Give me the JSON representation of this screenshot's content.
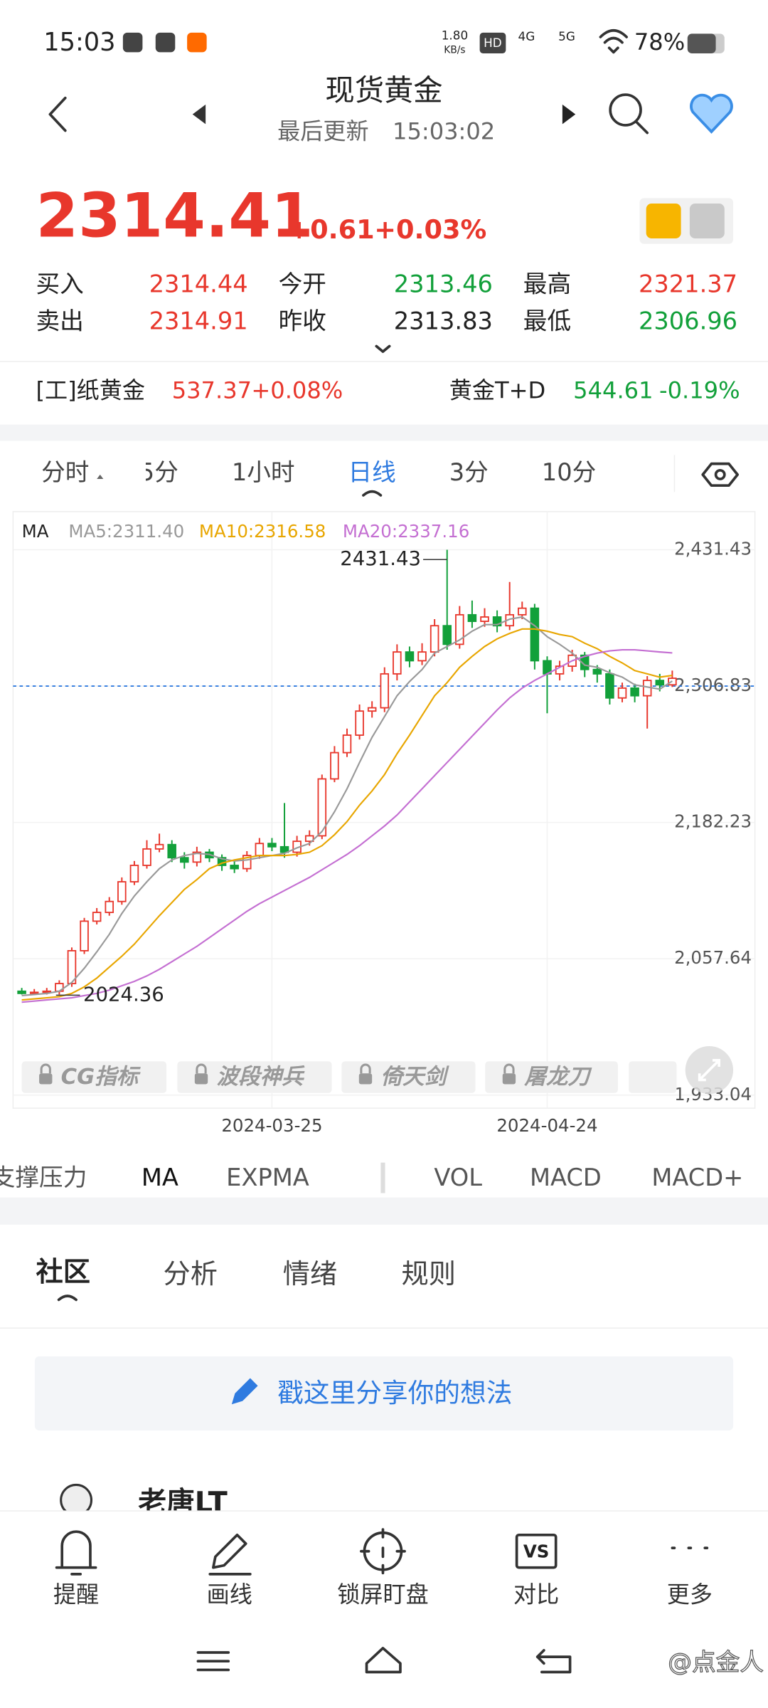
{
  "status_bar": {
    "time": "15:03",
    "speed": "1.80",
    "speed_unit": "KB/s",
    "hd": "HD",
    "network": [
      "4G",
      "5G"
    ],
    "battery": "78%"
  },
  "header": {
    "title": "现货黄金",
    "updated_label": "最后更新",
    "updated_time": "15:03:02"
  },
  "quote": {
    "price": "2314.41",
    "change": "+0.61",
    "change_pct": "+0.03%",
    "fields": [
      {
        "label": "买入",
        "value": "2314.44"
      },
      {
        "label": "今开",
        "value": "2313.46"
      },
      {
        "label": "最高",
        "value": "2321.37"
      },
      {
        "label": "卖出",
        "value": "2314.91"
      },
      {
        "label": "昨收",
        "value": "2313.83"
      },
      {
        "label": "最低",
        "value": "2306.96"
      }
    ]
  },
  "related": [
    {
      "name": "[工]纸黄金",
      "value": "537.37",
      "change": "+0.08%"
    },
    {
      "name": "黄金T+D",
      "value": "544.61",
      "change": "-0.19%"
    }
  ],
  "period_tabs": [
    "分时",
    "5分",
    "1小时",
    "日线",
    "3分",
    "10分"
  ],
  "chart_data": {
    "type": "candlestick",
    "legend_title": "MA",
    "categories": [
      null,
      null,
      null,
      null,
      null,
      null,
      null,
      null,
      null,
      null,
      null,
      null,
      null,
      null,
      null,
      null,
      null,
      null,
      null,
      null,
      "2024-03-25",
      null,
      null,
      null,
      null,
      null,
      null,
      null,
      null,
      null,
      null,
      null,
      null,
      null,
      null,
      null,
      null,
      null,
      null,
      null,
      null,
      null,
      "2024-04-24",
      null,
      null,
      null,
      null,
      null,
      null,
      null,
      null,
      null,
      null
    ],
    "open": [
      2028,
      2026,
      2027,
      2028,
      2035,
      2065,
      2092,
      2100,
      2110,
      2128,
      2143,
      2158,
      2162,
      2150,
      2146,
      2155,
      2150,
      2143,
      2140,
      2152,
      2163,
      2160,
      2155,
      2165,
      2170,
      2222,
      2246,
      2262,
      2284,
      2287,
      2318,
      2338,
      2330,
      2338,
      2362,
      2345,
      2372,
      2366,
      2370,
      2362,
      2372,
      2378,
      2330,
      2318,
      2325,
      2335,
      2322,
      2318,
      2296,
      2305,
      2298,
      2312,
      2308
    ],
    "high": [
      2031,
      2030,
      2031,
      2038,
      2068,
      2095,
      2104,
      2114,
      2132,
      2147,
      2166,
      2172,
      2166,
      2155,
      2160,
      2158,
      2153,
      2147,
      2156,
      2168,
      2168,
      2200,
      2170,
      2175,
      2226,
      2252,
      2268,
      2290,
      2293,
      2324,
      2345,
      2343,
      2346,
      2368,
      2431.43,
      2380,
      2385,
      2378,
      2376,
      2402,
      2384,
      2382,
      2334,
      2330,
      2340,
      2338,
      2326,
      2322,
      2310,
      2309,
      2316,
      2318,
      2321
    ],
    "low": [
      2025,
      2024.36,
      2025,
      2025,
      2032,
      2062,
      2089,
      2097,
      2107,
      2125,
      2140,
      2155,
      2146,
      2140,
      2142,
      2146,
      2138,
      2136,
      2137,
      2149,
      2156,
      2150,
      2151,
      2161,
      2167,
      2219,
      2242,
      2258,
      2278,
      2283,
      2312,
      2324,
      2326,
      2334,
      2340,
      2341,
      2360,
      2361,
      2356,
      2358,
      2368,
      2322,
      2282,
      2312,
      2320,
      2315,
      2310,
      2290,
      2292,
      2292,
      2268,
      2302,
      2306
    ],
    "close": [
      2026,
      2027,
      2028,
      2035,
      2065,
      2092,
      2100,
      2110,
      2128,
      2143,
      2158,
      2162,
      2150,
      2146,
      2155,
      2150,
      2143,
      2140,
      2152,
      2163,
      2160,
      2155,
      2165,
      2170,
      2222,
      2246,
      2262,
      2284,
      2287,
      2318,
      2338,
      2330,
      2338,
      2362,
      2345,
      2372,
      2366,
      2370,
      2362,
      2372,
      2378,
      2330,
      2318,
      2325,
      2335,
      2322,
      2318,
      2296,
      2305,
      2298,
      2312,
      2308,
      2314
    ],
    "up_color": "#e8372c",
    "down_color": "#12a03a",
    "series": [
      {
        "name": "MA5:2311.40",
        "color": "#999999",
        "values": [
          2024,
          2025,
          2026,
          2028,
          2036,
          2049,
          2064,
          2080,
          2099,
          2115,
          2128,
          2140,
          2148,
          2152,
          2154,
          2153,
          2149,
          2147,
          2148,
          2150,
          2152,
          2154,
          2159,
          2163,
          2174,
          2192,
          2213,
          2237,
          2260,
          2279,
          2298,
          2311,
          2322,
          2337,
          2343,
          2349,
          2357,
          2363,
          2363,
          2368,
          2370,
          2362,
          2352,
          2345,
          2337,
          2326,
          2324,
          2319,
          2315,
          2308,
          2306,
          2304,
          2311.4
        ]
      },
      {
        "name": "MA10:2316.58",
        "color": "#e8a600",
        "values": [
          2020,
          2021,
          2022,
          2023,
          2026,
          2032,
          2040,
          2050,
          2060,
          2071,
          2084,
          2097,
          2109,
          2121,
          2130,
          2140,
          2145,
          2148,
          2150,
          2152,
          2152,
          2152,
          2153,
          2155,
          2161,
          2171,
          2183,
          2198,
          2211,
          2226,
          2245,
          2262,
          2280,
          2298,
          2310,
          2324,
          2334,
          2343,
          2350,
          2355,
          2359,
          2359,
          2357,
          2354,
          2352,
          2346,
          2341,
          2334,
          2328,
          2321,
          2318,
          2315,
          2316.58
        ]
      },
      {
        "name": "MA20:2337.16",
        "color": "#c46fd2",
        "values": [
          2018,
          2019,
          2020,
          2021,
          2022,
          2024,
          2026,
          2029,
          2033,
          2037,
          2042,
          2048,
          2055,
          2062,
          2069,
          2077,
          2085,
          2093,
          2101,
          2108,
          2114,
          2120,
          2126,
          2132,
          2139,
          2146,
          2153,
          2161,
          2170,
          2179,
          2189,
          2201,
          2213,
          2225,
          2237,
          2249,
          2261,
          2273,
          2285,
          2296,
          2305,
          2312,
          2318,
          2324,
          2330,
          2334,
          2337,
          2339,
          2340,
          2340,
          2339,
          2338,
          2337.16
        ]
      }
    ],
    "ylim": [
      1933.04,
      2431.43
    ],
    "yticks": [
      {
        "value": 2431.43,
        "label": "2,431.43"
      },
      {
        "value": 2306.83,
        "label": "2,306.83"
      },
      {
        "value": 2182.23,
        "label": "2,182.23"
      },
      {
        "value": 2057.64,
        "label": "2,057.64"
      },
      {
        "value": 1933.04,
        "label": "1,933.04"
      }
    ],
    "price_line": 2306.83,
    "grid": true
  },
  "locked_indicators": [
    "CG指标",
    "波段神兵",
    "倚天剑",
    "屠龙刀"
  ],
  "indicator_tabs": [
    "支撑压力",
    "MA",
    "EXPMA",
    "VOL",
    "MACD",
    "MACD+"
  ],
  "community_tabs": [
    "社区",
    "分析",
    "情绪",
    "规则"
  ],
  "composer": "戳这里分享你的想法",
  "post": {
    "author": "老唐LT"
  },
  "bottom_nav": [
    "提醒",
    "画线",
    "锁屏盯盘",
    "对比",
    "更多"
  ],
  "watermark": "@点金人"
}
